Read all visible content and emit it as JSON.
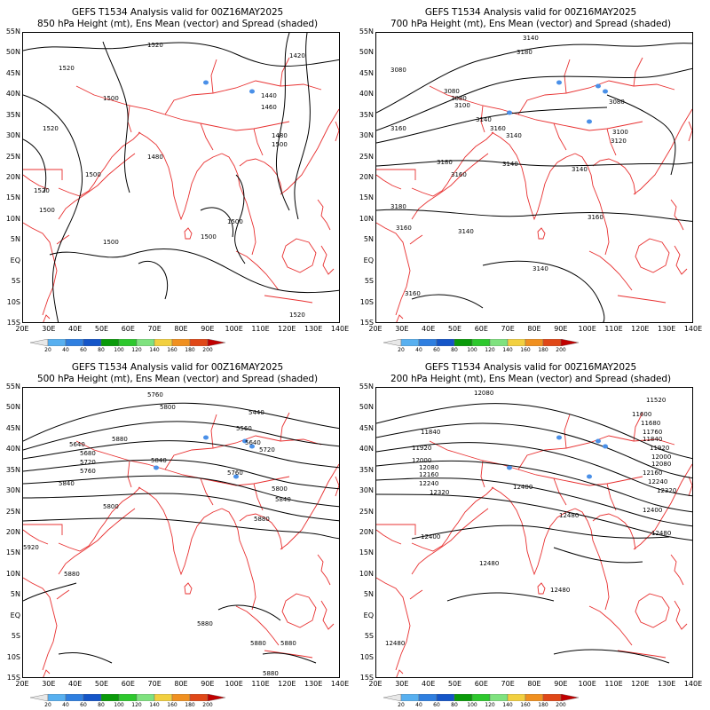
{
  "panels": [
    {
      "id": "p850",
      "title_line1": "GEFS T1534 Analysis valid for 00Z16MAY2025",
      "title_line2": "850 hPa Height (mt), Ens Mean (vector) and Spread (shaded)",
      "contour_labels": [
        "1520",
        "1520",
        "1500",
        "1520",
        "1500",
        "1480",
        "1520",
        "1500",
        "1500",
        "1420",
        "1440",
        "1460",
        "1480",
        "1500",
        "1500",
        "1500",
        "1520"
      ]
    },
    {
      "id": "p700",
      "title_line1": "GEFS T1534 Analysis valid for 00Z16MAY2025",
      "title_line2": "700 hPa Height (mt), Ens Mean (vector) and Spread (shaded)",
      "contour_labels": [
        "3140",
        "3180",
        "3080",
        "3080",
        "3080",
        "3100",
        "3140",
        "3160",
        "3160",
        "3180",
        "3140",
        "3160",
        "3140",
        "3140",
        "3100",
        "3120",
        "3180",
        "3160",
        "3140",
        "3160",
        "3140",
        "3160",
        "3080"
      ]
    },
    {
      "id": "p500",
      "title_line1": "GEFS T1534 Analysis valid for 00Z16MAY2025",
      "title_line2": "500 hPa Height (mt), Ens Mean (vector) and Spread (shaded)",
      "contour_labels": [
        "5760",
        "5800",
        "5440",
        "5640",
        "5680",
        "5720",
        "5760",
        "5840",
        "5800",
        "5880",
        "5840",
        "5560",
        "5640",
        "5720",
        "5760",
        "5800",
        "5840",
        "5880",
        "5920",
        "5880",
        "5880",
        "5880",
        "5880",
        "5880"
      ]
    },
    {
      "id": "p200",
      "title_line1": "GEFS T1534 Analysis valid for 00Z16MAY2025",
      "title_line2": "200 hPa Height (mt), Ens Mean (vector) and Spread (shaded)",
      "contour_labels": [
        "12080",
        "11520",
        "11600",
        "11680",
        "11760",
        "11840",
        "11920",
        "12000",
        "12080",
        "12160",
        "12240",
        "12320",
        "11840",
        "11920",
        "12000",
        "12080",
        "12160",
        "12240",
        "12320",
        "12400",
        "12400",
        "12480",
        "12400",
        "12480",
        "12480",
        "12480",
        "12480"
      ]
    }
  ],
  "lat_labels": [
    "55N",
    "50N",
    "45N",
    "40N",
    "35N",
    "30N",
    "25N",
    "20N",
    "15N",
    "10N",
    "5N",
    "EQ",
    "5S",
    "10S",
    "15S"
  ],
  "lon_labels": [
    "20E",
    "30E",
    "40E",
    "50E",
    "60E",
    "70E",
    "80E",
    "90E",
    "100E",
    "110E",
    "120E",
    "130E",
    "140E"
  ],
  "colorbar": {
    "labels": [
      "20",
      "40",
      "60",
      "80",
      "100",
      "120",
      "140",
      "160",
      "180",
      "200"
    ],
    "colors": [
      "#e8e8e8",
      "#58b0f0",
      "#2f7fe0",
      "#1455c8",
      "#0a9a0a",
      "#2ec82e",
      "#7fe27f",
      "#f2d040",
      "#f09020",
      "#e04818",
      "#c00000"
    ]
  },
  "colors": {
    "coast": "#e83030",
    "contour": "#000000",
    "spread": "#4a90e8"
  }
}
